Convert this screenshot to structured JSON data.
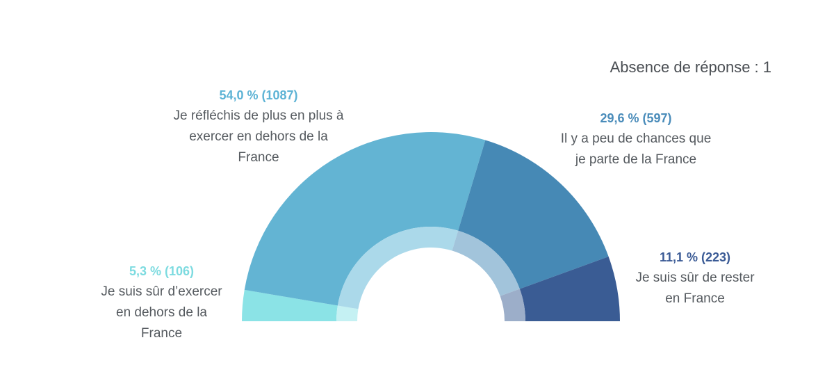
{
  "note": "Absence de réponse : 1",
  "chart_data": {
    "type": "pie",
    "shape": "semi-donut",
    "slices": [
      {
        "label_lines": [
          "Je suis sûr d’exercer",
          "en dehors de la",
          "France"
        ],
        "percent_text": "5,3 % (106)",
        "value": 5.3,
        "count": 106,
        "color": "#8be3e6",
        "inner_color": "#c5f1f3"
      },
      {
        "label_lines": [
          "Je réfléchis de plus en plus à",
          "exercer en dehors de la",
          "France"
        ],
        "percent_text": "54,0 % (1087)",
        "value": 54.0,
        "count": 1087,
        "color": "#63b4d3",
        "inner_color": "#abd9ea"
      },
      {
        "label_lines": [
          "Il y a peu de chances que",
          "je parte de la France"
        ],
        "percent_text": "29,6 % (597)",
        "value": 29.6,
        "count": 597,
        "color": "#4689b5",
        "inner_color": "#a2c4db"
      },
      {
        "label_lines": [
          "Je suis sûr de rester",
          "en France"
        ],
        "percent_text": "11,1 % (223)",
        "value": 11.1,
        "count": 223,
        "color": "#3a5c94",
        "inner_color": "#9caec9"
      }
    ],
    "label_colors": [
      "#7ddbe0",
      "#5db3d5",
      "#4a8cba",
      "#3a5a95"
    ]
  }
}
